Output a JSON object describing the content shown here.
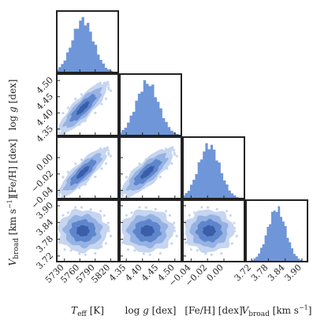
{
  "chart_data": {
    "type": "corner",
    "histogram_color": "#6f96d8",
    "contour_colors": [
      "#c6d5f0",
      "#95b2e3",
      "#5f86cc",
      "#3a5fa8"
    ],
    "parameters": [
      {
        "key": "teff",
        "label_main": "T",
        "label_sub": "eff",
        "label_tail": " [K]",
        "mean": 5766,
        "sd": 21,
        "range": [
          5715,
          5835
        ],
        "ticks": [
          5730,
          5760,
          5790,
          5820
        ],
        "tick_labels": [
          "5730",
          "5760",
          "5790",
          "5820"
        ]
      },
      {
        "key": "logg",
        "label_main": "log",
        "label_italic": "g",
        "label_tail": " [dex]",
        "mean": 4.415,
        "sd": 0.035,
        "range": [
          4.33,
          4.52
        ],
        "ticks": [
          4.35,
          4.4,
          4.45,
          4.5
        ],
        "tick_labels": [
          "4.35",
          "4.40",
          "4.45",
          "4.50"
        ]
      },
      {
        "key": "feh",
        "label_main": "[Fe/H] [dex]",
        "mean": -0.018,
        "sd": 0.013,
        "range": [
          -0.05,
          0.025
        ],
        "ticks": [
          -0.04,
          -0.02,
          0.0
        ],
        "tick_labels": [
          "−0.04",
          "−0.02",
          "0.00"
        ]
      },
      {
        "key": "vbroad",
        "label_main": "V",
        "label_sub": "broad",
        "label_tail": " [km s",
        "label_sup": "−1",
        "label_end": "]",
        "mean": 3.81,
        "sd": 0.033,
        "range": [
          3.7,
          3.92
        ],
        "ticks": [
          3.72,
          3.78,
          3.84,
          3.9
        ],
        "tick_labels": [
          "3.72",
          "3.78",
          "3.84",
          "3.90"
        ]
      }
    ],
    "correlations": {
      "teff-logg": 0.85,
      "teff-feh": 0.85,
      "teff-vbroad": 0.0,
      "logg-feh": 0.8,
      "logg-vbroad": 0.0,
      "feh-vbroad": 0.0
    },
    "histogram_bins": 25,
    "contour_levels_sigma": [
      2.3,
      1.75,
      1.2,
      0.6
    ]
  }
}
